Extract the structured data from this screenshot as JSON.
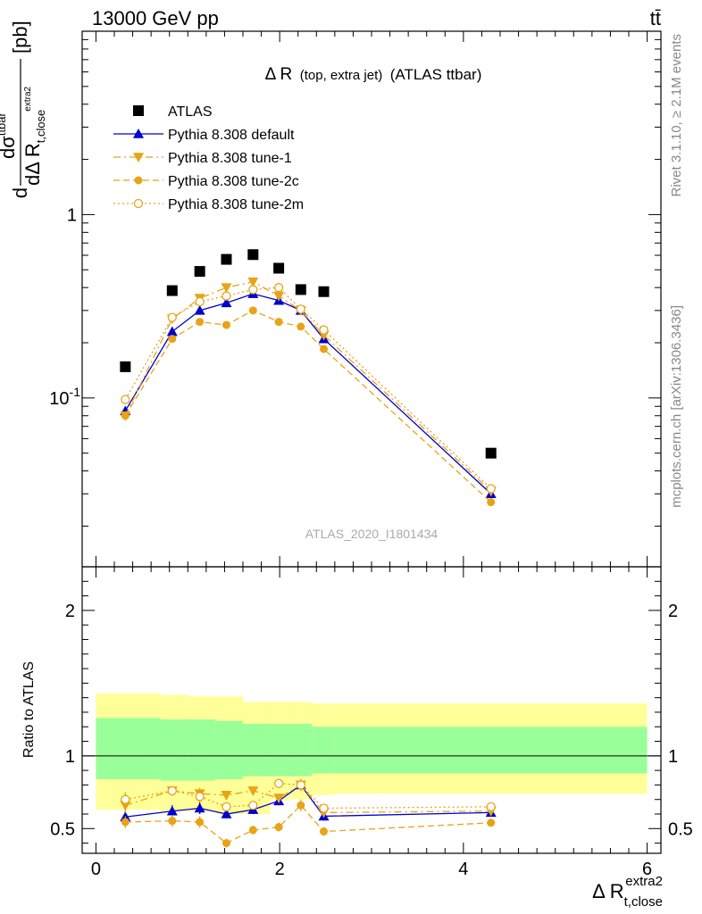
{
  "header": {
    "energy_label": "13000 GeV pp",
    "process_label": "tt̄"
  },
  "side_labels": {
    "rivet": "Rivet 3.1.10, ≥ 2.1M events",
    "mcplots": "mcplots.cern.ch [arXiv:1306.3436]"
  },
  "chart_data": [
    {
      "type": "scatter",
      "title": "Δ R (top, extra jet) (ATLAS ttbar)",
      "title_main": "Δ R",
      "title_small": "(top, extra jet)",
      "title_tail": "(ATLAS ttbar)",
      "ylabel": "dσ^ttbar / dΔ R_t,close^extra2 [pb]",
      "ylabel_parts": {
        "d": "d",
        "sigma": "dσ",
        "sigma_sup": "ttbar",
        "den": "dΔ R",
        "den_sub": "t,close",
        "den_subsup": "extra2",
        "unit": "[pb]"
      },
      "yscale": "log",
      "xlim": [
        -0.15,
        6.15
      ],
      "ylim": [
        0.012,
        10
      ],
      "y_ticks": [
        {
          "value": 1,
          "label": "1"
        },
        {
          "value": 0.1,
          "label": "10^-1"
        }
      ],
      "watermark": "ATLAS_2020_I1801434",
      "legend_position": "top-left",
      "x": [
        0.32,
        0.83,
        1.13,
        1.42,
        1.71,
        1.99,
        2.23,
        2.48,
        4.3
      ],
      "series": [
        {
          "name": "ATLAS",
          "color": "#000000",
          "style": "points",
          "marker": "square",
          "values": [
            0.148,
            0.385,
            0.49,
            0.57,
            0.605,
            0.51,
            0.39,
            0.38,
            0.05
          ]
        },
        {
          "name": "Pythia 8.308 default",
          "color": "#0000cc",
          "style": "solid",
          "marker": "triangle-up",
          "values": [
            0.085,
            0.23,
            0.3,
            0.33,
            0.37,
            0.34,
            0.3,
            0.21,
            0.03
          ]
        },
        {
          "name": "Pythia 8.308 tune-1",
          "color": "#e8a317",
          "style": "dashdot",
          "marker": "triangle-down",
          "values": [
            0.08,
            0.27,
            0.35,
            0.4,
            0.43,
            0.36,
            0.3,
            0.22,
            0.031
          ]
        },
        {
          "name": "Pythia 8.308 tune-2c",
          "color": "#e8a317",
          "style": "dashed",
          "marker": "circle-filled",
          "values": [
            0.08,
            0.21,
            0.26,
            0.25,
            0.3,
            0.26,
            0.245,
            0.185,
            0.027
          ]
        },
        {
          "name": "Pythia 8.308 tune-2m",
          "color": "#e8a317",
          "style": "dotted",
          "marker": "circle-open",
          "values": [
            0.098,
            0.275,
            0.335,
            0.36,
            0.39,
            0.4,
            0.305,
            0.235,
            0.032
          ]
        }
      ]
    },
    {
      "type": "scatter",
      "ylabel": "Ratio to ATLAS",
      "xlabel": "Δ R_t,close^extra2",
      "xlabel_parts": {
        "main": "Δ R",
        "sub": "t,close",
        "sup": "extra2"
      },
      "xlim": [
        -0.15,
        6.15
      ],
      "ylim": [
        0.33,
        2.3
      ],
      "x_ticks": [
        0,
        2,
        4,
        6
      ],
      "y_ticks": [
        0.5,
        1,
        2
      ],
      "reference_line": 1,
      "uncertainty_bands": {
        "bin_edges": [
          0,
          0.7,
          1.0,
          1.3,
          1.6,
          1.9,
          2.1,
          2.35,
          2.6,
          6.0
        ],
        "outer": {
          "color": "#ffff99",
          "lo": [
            0.63,
            0.62,
            0.62,
            0.6,
            0.6,
            0.7,
            0.7,
            0.73,
            0.74
          ],
          "hi": [
            1.43,
            1.42,
            1.41,
            1.41,
            1.37,
            1.37,
            1.37,
            1.36,
            1.36
          ]
        },
        "inner": {
          "color": "#99ff99",
          "lo": [
            0.84,
            0.83,
            0.83,
            0.84,
            0.86,
            0.86,
            0.86,
            0.88,
            0.88
          ],
          "hi": [
            1.26,
            1.25,
            1.25,
            1.24,
            1.22,
            1.22,
            1.22,
            1.2,
            1.2
          ]
        }
      },
      "x": [
        0.32,
        0.83,
        1.13,
        1.42,
        1.71,
        1.99,
        2.23,
        2.48,
        4.3
      ],
      "series": [
        {
          "name": "Pythia 8.308 default",
          "color": "#0000cc",
          "style": "solid",
          "marker": "triangle-up",
          "values": [
            0.58,
            0.62,
            0.64,
            0.6,
            0.63,
            0.69,
            0.8,
            0.585,
            0.61
          ],
          "errors": [
            0.06,
            0.04,
            0.04,
            0.03,
            0.03,
            0.03,
            0.04,
            0.03,
            0.02
          ]
        },
        {
          "name": "Pythia 8.308 tune-1",
          "color": "#e8a317",
          "style": "dashdot",
          "marker": "triangle-down",
          "values": [
            0.66,
            0.76,
            0.74,
            0.73,
            0.76,
            0.71,
            0.8,
            0.61,
            0.62
          ],
          "errors": [
            0.05,
            0.03,
            0.04,
            0.03,
            0.03,
            0.03,
            0.04,
            0.03,
            0.02
          ]
        },
        {
          "name": "Pythia 8.308 tune-2c",
          "color": "#e8a317",
          "style": "dashed",
          "marker": "circle-filled",
          "values": [
            0.545,
            0.553,
            0.545,
            0.4,
            0.49,
            0.51,
            0.66,
            0.48,
            0.54
          ],
          "errors": [
            0.04,
            0.04,
            0.04,
            0.03,
            0.03,
            0.03,
            0.04,
            0.03,
            0.02
          ]
        },
        {
          "name": "Pythia 8.308 tune-2m",
          "color": "#e8a317",
          "style": "dotted",
          "marker": "circle-open",
          "values": [
            0.7,
            0.76,
            0.72,
            0.65,
            0.66,
            0.81,
            0.8,
            0.64,
            0.65
          ],
          "errors": [
            0.05,
            0.03,
            0.04,
            0.03,
            0.03,
            0.03,
            0.04,
            0.03,
            0.02
          ]
        }
      ]
    }
  ]
}
